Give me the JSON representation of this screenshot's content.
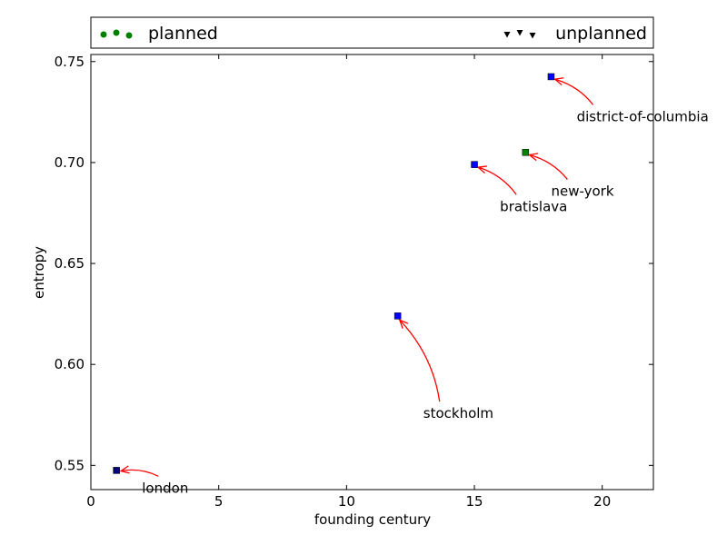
{
  "chart_data": {
    "type": "scatter",
    "xlabel": "founding century",
    "ylabel": "entropy",
    "xlim": [
      0,
      22
    ],
    "ylim": [
      0.538,
      0.7535
    ],
    "xticks": [
      0,
      5,
      10,
      15,
      20
    ],
    "yticks": [
      0.55,
      0.6,
      0.65,
      0.7,
      0.75
    ],
    "xtick_labels": [
      "0",
      "5",
      "10",
      "15",
      "20"
    ],
    "ytick_labels": [
      "0.55",
      "0.60",
      "0.65",
      "0.70",
      "0.75"
    ],
    "grid": false,
    "legend": {
      "placement": "top",
      "entries": [
        {
          "label": "planned",
          "marker": "circle",
          "color": "#008000"
        },
        {
          "label": "unplanned",
          "marker": "triangle-down",
          "color": "#000000"
        }
      ]
    },
    "points": [
      {
        "name": "london",
        "x": 1,
        "y": 0.5475,
        "color": "#000080"
      },
      {
        "name": "stockholm",
        "x": 12,
        "y": 0.624,
        "color": "#0000ff"
      },
      {
        "name": "bratislava",
        "x": 15,
        "y": 0.699,
        "color": "#0000ff"
      },
      {
        "name": "new-york",
        "x": 17,
        "y": 0.705,
        "color": "#008000"
      },
      {
        "name": "district-of-columbia",
        "x": 18,
        "y": 0.7425,
        "color": "#0000ff"
      }
    ],
    "annotations": [
      {
        "text": "london",
        "point": 0,
        "text_x": 2,
        "text_y": 0.5365
      },
      {
        "text": "stockholm",
        "point": 1,
        "text_x": 13,
        "text_y": 0.5735
      },
      {
        "text": "bratislava",
        "point": 2,
        "text_x": 16,
        "text_y": 0.676
      },
      {
        "text": "new-york",
        "point": 3,
        "text_x": 18,
        "text_y": 0.6835
      },
      {
        "text": "district-of-columbia",
        "point": 4,
        "text_x": 19,
        "text_y": 0.7205
      }
    ],
    "arrow_color": "#ff0000"
  }
}
